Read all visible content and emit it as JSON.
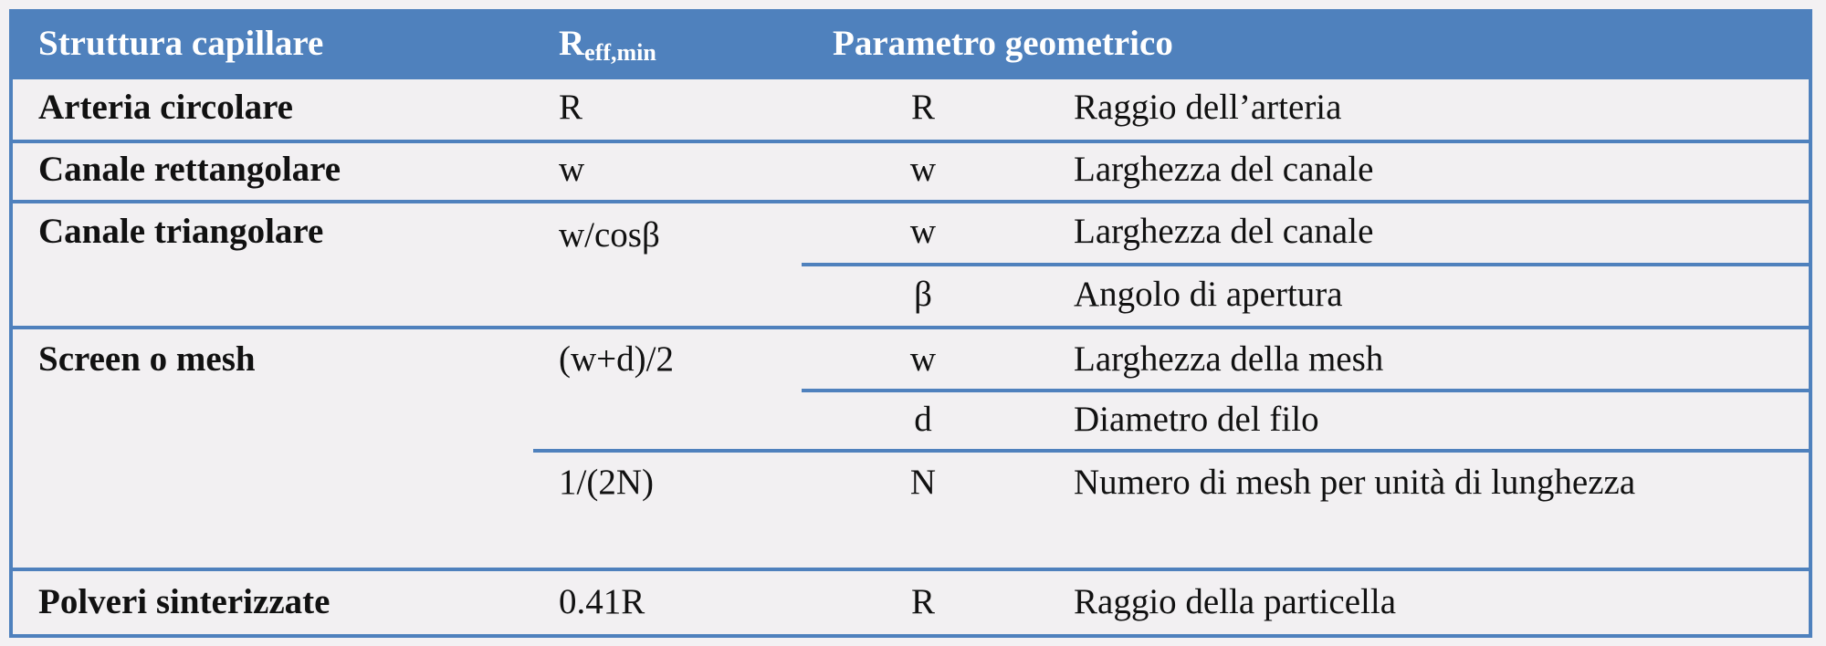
{
  "header": {
    "col1": "Struttura capillare",
    "col2_main": "R",
    "col2_sub": "eff,min",
    "col3": "Parametro geometrico"
  },
  "rows": [
    {
      "structure": "Arteria circolare",
      "reff": "R",
      "params": [
        {
          "symbol": "R",
          "description": "Raggio dell’arteria"
        }
      ]
    },
    {
      "structure": "Canale rettangolare",
      "reff": "w",
      "params": [
        {
          "symbol": "w",
          "description": "Larghezza del canale"
        }
      ]
    },
    {
      "structure": "Canale triangolare",
      "reff": "w/cosβ",
      "params": [
        {
          "symbol": "w",
          "description": "Larghezza del canale"
        },
        {
          "symbol": "β",
          "description": "Angolo di apertura"
        }
      ]
    },
    {
      "structure": "Screen o mesh",
      "reff": "(w+d)/2",
      "reff2": "1/(2N)",
      "params": [
        {
          "symbol": "w",
          "description": "Larghezza della mesh"
        },
        {
          "symbol": "d",
          "description": "Diametro del filo"
        },
        {
          "symbol": "N",
          "description": "Numero di mesh per unità di lunghezza"
        }
      ]
    },
    {
      "structure": "Polveri sinterizzate",
      "reff": "0.41R",
      "params": [
        {
          "symbol": "R",
          "description": "Raggio della particella"
        }
      ]
    }
  ],
  "colors": {
    "header_bg": "#4f81bd",
    "border": "#4f81bd",
    "body_bg": "#f2f0f2"
  }
}
